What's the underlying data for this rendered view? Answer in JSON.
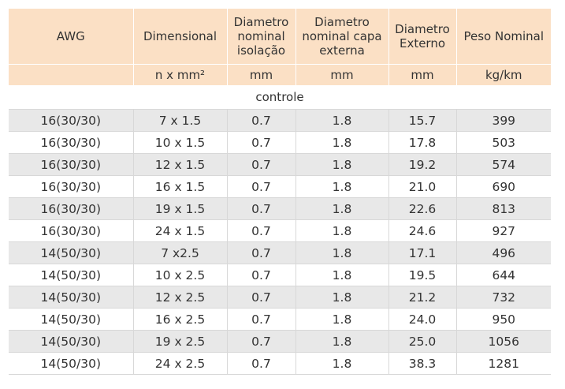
{
  "headers": [
    "AWG",
    "Dimensional",
    "Diametro nominal isolação",
    "Diametro nominal capa externa",
    "Diametro Externo",
    "Peso Nominal"
  ],
  "units": [
    "",
    "n x mm²",
    "mm",
    "mm",
    "mm",
    "kg/km"
  ],
  "group_label": "controle",
  "rows": [
    [
      "16(30/30)",
      "7 x 1.5",
      "0.7",
      "1.8",
      "15.7",
      "399"
    ],
    [
      "16(30/30)",
      "10 x 1.5",
      "0.7",
      "1.8",
      "17.8",
      "503"
    ],
    [
      "16(30/30)",
      "12 x 1.5",
      "0.7",
      "1.8",
      "19.2",
      "574"
    ],
    [
      "16(30/30)",
      "16 x 1.5",
      "0.7",
      "1.8",
      "21.0",
      "690"
    ],
    [
      "16(30/30)",
      "19 x 1.5",
      "0.7",
      "1.8",
      "22.6",
      "813"
    ],
    [
      "16(30/30)",
      "24 x 1.5",
      "0.7",
      "1.8",
      "24.6",
      "927"
    ],
    [
      "14(50/30)",
      "7 x2.5",
      "0.7",
      "1.8",
      "17.1",
      "496"
    ],
    [
      "14(50/30)",
      "10 x 2.5",
      "0.7",
      "1.8",
      "19.5",
      "644"
    ],
    [
      "14(50/30)",
      "12 x 2.5",
      "0.7",
      "1.8",
      "21.2",
      "732"
    ],
    [
      "14(50/30)",
      "16 x 2.5",
      "0.7",
      "1.8",
      "24.0",
      "950"
    ],
    [
      "14(50/30)",
      "19 x 2.5",
      "0.7",
      "1.8",
      "25.0",
      "1056"
    ],
    [
      "14(50/30)",
      "24 x 2.5",
      "0.7",
      "1.8",
      "38.3",
      "1281"
    ]
  ],
  "colors": {
    "header_bg": "#fbe0c5",
    "stripe_bg": "#e8e8e8",
    "text": "#333333"
  }
}
